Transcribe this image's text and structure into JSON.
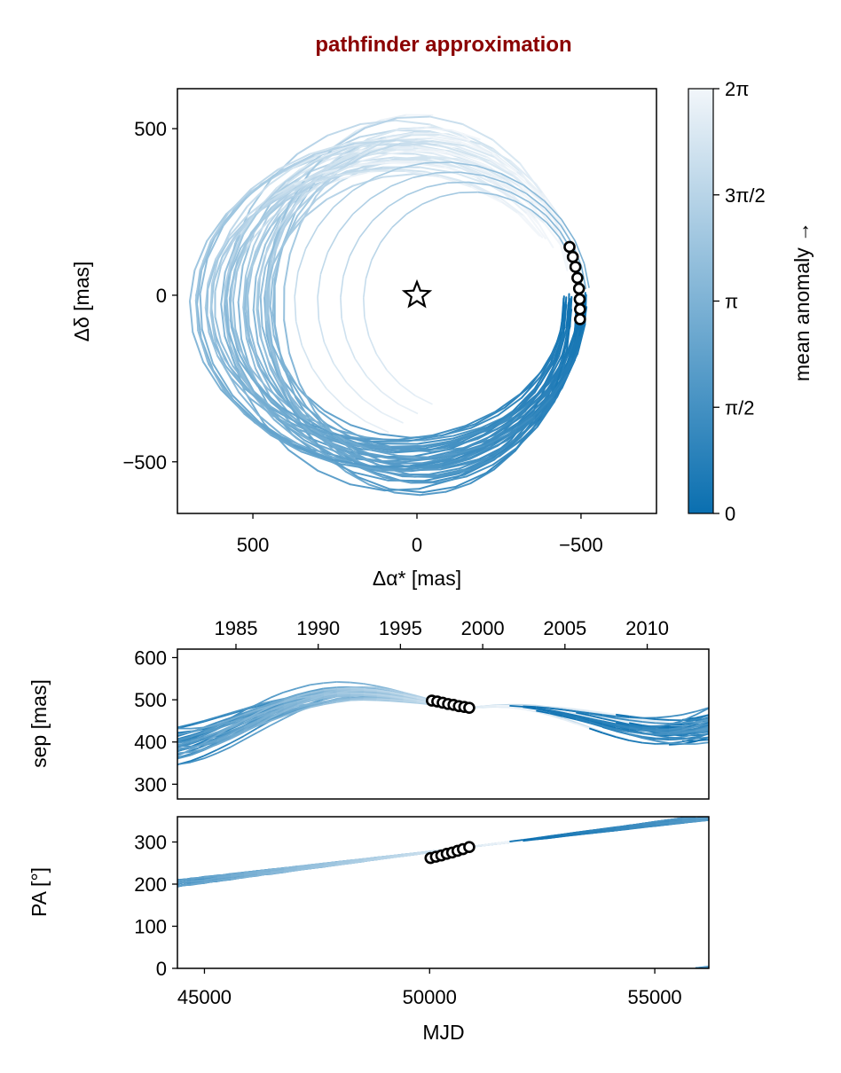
{
  "title": "pathfinder approximation",
  "colors": {
    "title": "#8b0000",
    "orbit_dark": "#0a6fb0",
    "orbit_light": "#f2f6fa",
    "axes": "#000000",
    "marker_fill": "#ffffff"
  },
  "colorbar": {
    "label": "mean anomaly →",
    "colormap": [
      "#0a6fb0",
      "#f2f6fa"
    ],
    "ticks": [
      {
        "value": 0,
        "label": "0"
      },
      {
        "value": 1.5708,
        "label": "π/2"
      },
      {
        "value": 3.1416,
        "label": "π"
      },
      {
        "value": 4.7124,
        "label": "3π/2"
      },
      {
        "value": 6.2832,
        "label": "2π"
      }
    ],
    "range": [
      0,
      6.2832
    ]
  },
  "chart_data": [
    {
      "id": "sky",
      "type": "line",
      "xlabel": "Δα* [mas]",
      "ylabel": "Δδ [mas]",
      "xlim": [
        730,
        -730
      ],
      "ylim": [
        -655,
        620
      ],
      "xticks": [
        {
          "value": 500,
          "label": "500"
        },
        {
          "value": 0,
          "label": "0"
        },
        {
          "value": -500,
          "label": "−500"
        }
      ],
      "yticks": [
        {
          "value": 500,
          "label": "500"
        },
        {
          "value": 0,
          "label": "0"
        },
        {
          "value": -500,
          "label": "−500"
        }
      ],
      "star": {
        "x": 0,
        "y": 0
      },
      "orbit_count": 40,
      "observations": [
        {
          "x": -465,
          "y": 145
        },
        {
          "x": -475,
          "y": 115
        },
        {
          "x": -483,
          "y": 85
        },
        {
          "x": -489,
          "y": 52
        },
        {
          "x": -494,
          "y": 20
        },
        {
          "x": -496,
          "y": -12
        },
        {
          "x": -497,
          "y": -42
        },
        {
          "x": -497,
          "y": -72
        }
      ]
    },
    {
      "id": "sep",
      "type": "line",
      "ylabel": "sep [mas]",
      "xlim": [
        44400,
        56200
      ],
      "ylim": [
        265,
        620
      ],
      "yticks": [
        {
          "value": 600,
          "label": "600"
        },
        {
          "value": 500,
          "label": "500"
        },
        {
          "value": 400,
          "label": "400"
        },
        {
          "value": 300,
          "label": "300"
        }
      ],
      "top_xticks": [
        {
          "value": 45700,
          "label": "1985"
        },
        {
          "value": 47526,
          "label": "1990"
        },
        {
          "value": 49352,
          "label": "1995"
        },
        {
          "value": 51179,
          "label": "2000"
        },
        {
          "value": 53005,
          "label": "2005"
        },
        {
          "value": 54832,
          "label": "2010"
        }
      ],
      "observations": [
        {
          "x": 50050,
          "y": 498
        },
        {
          "x": 50170,
          "y": 496
        },
        {
          "x": 50290,
          "y": 493
        },
        {
          "x": 50410,
          "y": 490
        },
        {
          "x": 50530,
          "y": 488
        },
        {
          "x": 50650,
          "y": 485
        },
        {
          "x": 50770,
          "y": 483
        },
        {
          "x": 50880,
          "y": 481
        }
      ]
    },
    {
      "id": "pa",
      "type": "line",
      "xlabel": "MJD",
      "ylabel": "PA [°]",
      "xlim": [
        44400,
        56200
      ],
      "ylim": [
        0,
        360
      ],
      "xticks": [
        {
          "value": 45000,
          "label": "45000"
        },
        {
          "value": 50000,
          "label": "50000"
        },
        {
          "value": 55000,
          "label": "55000"
        }
      ],
      "yticks": [
        {
          "value": 300,
          "label": "300"
        },
        {
          "value": 200,
          "label": "200"
        },
        {
          "value": 100,
          "label": "100"
        },
        {
          "value": 0,
          "label": "0"
        }
      ],
      "observations": [
        {
          "x": 50020,
          "y": 262
        },
        {
          "x": 50140,
          "y": 265
        },
        {
          "x": 50260,
          "y": 268
        },
        {
          "x": 50380,
          "y": 272
        },
        {
          "x": 50500,
          "y": 275
        },
        {
          "x": 50620,
          "y": 279
        },
        {
          "x": 50740,
          "y": 283
        },
        {
          "x": 50880,
          "y": 288
        }
      ]
    }
  ]
}
